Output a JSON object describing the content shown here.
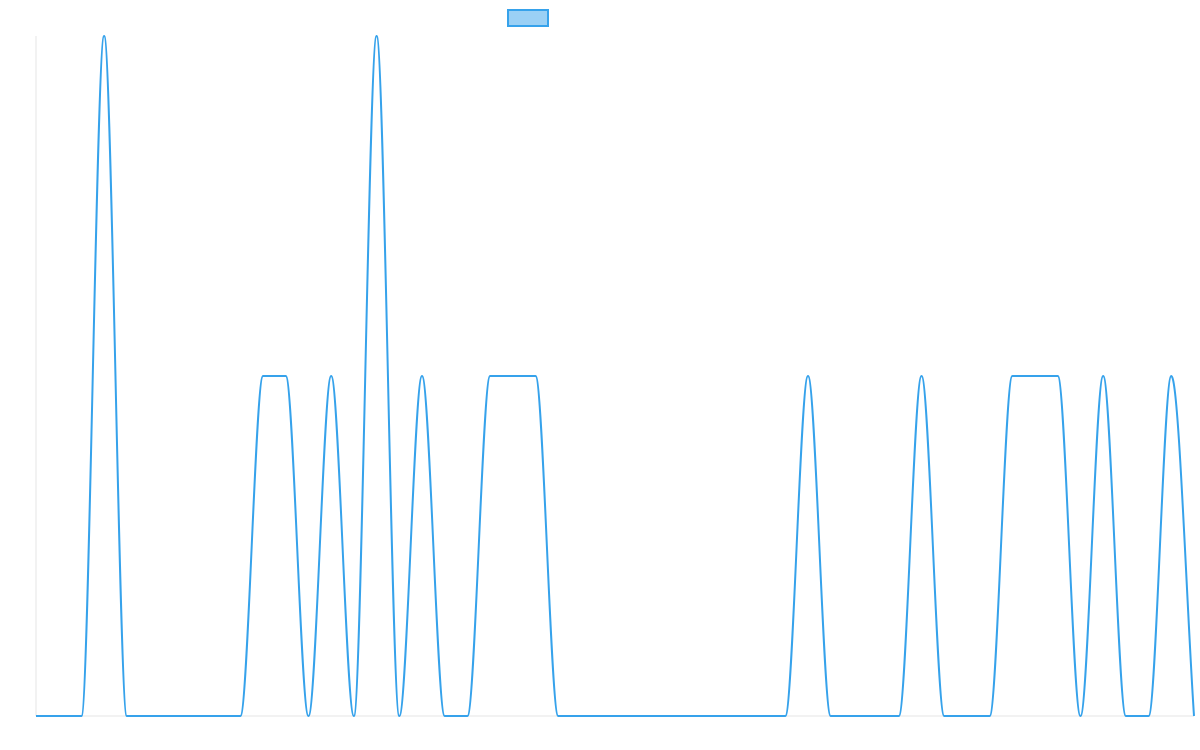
{
  "chart_data": {
    "type": "line",
    "title": "",
    "xlabel": "",
    "ylabel": "",
    "legend": {
      "position": "top-center",
      "entries": [
        {
          "label": ""
        }
      ]
    },
    "grid": false,
    "xlim": [
      0,
      51
    ],
    "ylim": [
      0,
      2
    ],
    "colors": {
      "line": "#36a2eb",
      "legend_fill": "#9ad0f5",
      "axis": "#e5e5e5"
    },
    "series": [
      {
        "name": "",
        "x": [
          0,
          1,
          2,
          3,
          4,
          5,
          6,
          7,
          8,
          9,
          10,
          11,
          12,
          13,
          14,
          15,
          16,
          17,
          18,
          19,
          20,
          21,
          22,
          23,
          24,
          25,
          26,
          27,
          28,
          29,
          30,
          31,
          32,
          33,
          34,
          35,
          36,
          37,
          38,
          39,
          40,
          41,
          42,
          43,
          44,
          45,
          46,
          47,
          48,
          49,
          50,
          51
        ],
        "values": [
          0,
          0,
          0,
          2,
          0,
          0,
          0,
          0,
          0,
          0,
          1,
          1,
          0,
          1,
          0,
          2,
          0,
          1,
          0,
          0,
          1,
          1,
          1,
          0,
          0,
          0,
          0,
          0,
          0,
          0,
          0,
          0,
          0,
          0,
          1,
          0,
          0,
          0,
          0,
          1,
          0,
          0,
          0,
          1,
          1,
          1,
          0,
          1,
          0,
          0,
          1,
          0
        ]
      }
    ]
  }
}
